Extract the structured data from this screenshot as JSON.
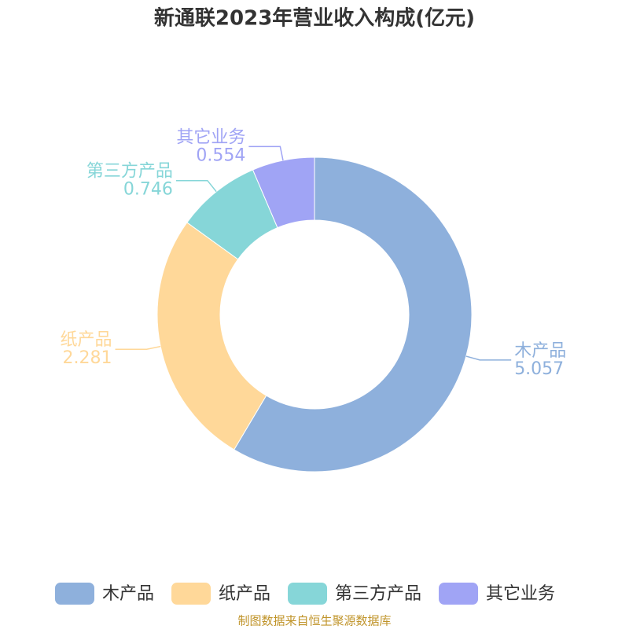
{
  "chart_data": {
    "type": "donut",
    "title": "新通联2023年营业收入构成(亿元)",
    "categories": [
      "木产品",
      "纸产品",
      "第三方产品",
      "其它业务"
    ],
    "values": [
      5.057,
      2.281,
      0.746,
      0.554
    ],
    "colors": [
      "#8eb0dc",
      "#ffd899",
      "#86d6d8",
      "#a0a4f5"
    ],
    "legend": "bottom",
    "source": "制图数据来自恒生聚源数据库"
  }
}
